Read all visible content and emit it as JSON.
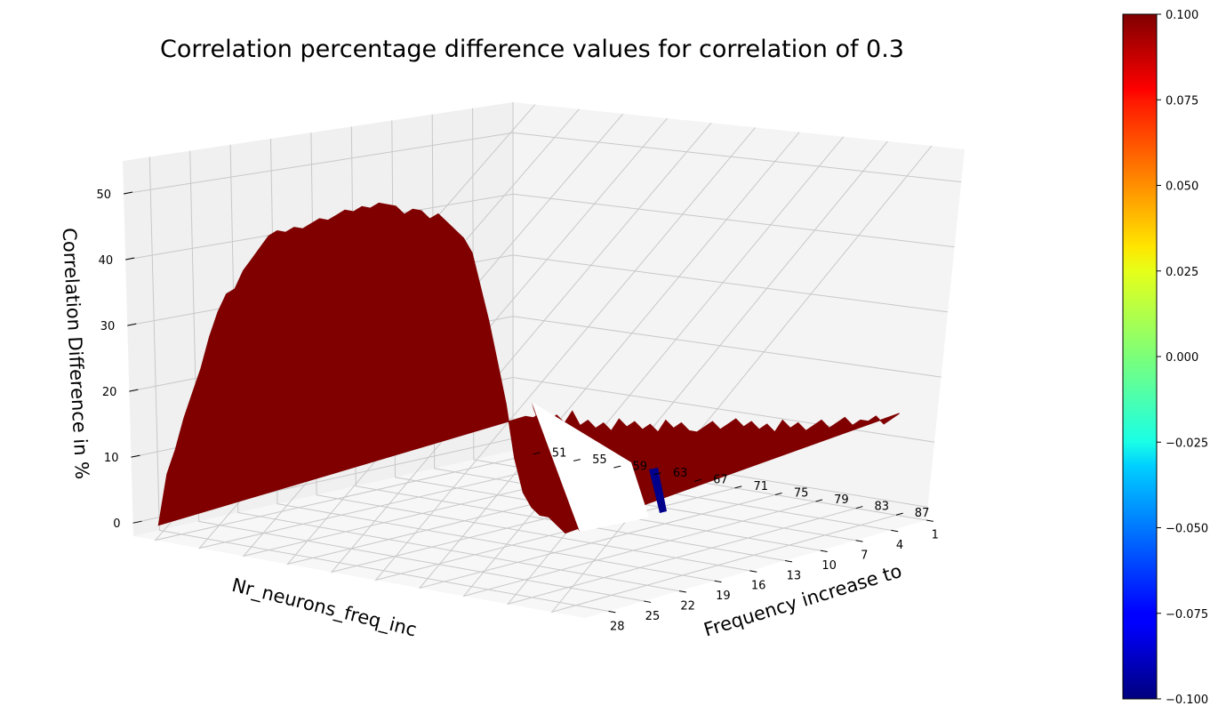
{
  "chart_data": {
    "type": "surface3d",
    "title": "Correlation percentage difference values for correlation of 0.3",
    "xlabel": "Frequency increase to",
    "ylabel": "Nr_neurons_freq_inc",
    "zlabel": "Correlation Difference in %",
    "x_ticks": [
      "51",
      "55",
      "59",
      "63",
      "67",
      "71",
      "75",
      "79",
      "83",
      "87"
    ],
    "y_ticks": [
      "28",
      "25",
      "22",
      "19",
      "16",
      "13",
      "10",
      "7",
      "4",
      "1"
    ],
    "z_ticks": [
      "0",
      "10",
      "20",
      "30",
      "40",
      "50"
    ],
    "xlim": [
      49,
      90
    ],
    "ylim": [
      1,
      30
    ],
    "zlim": [
      -2,
      55
    ],
    "grid": true,
    "surface_color": "#800000",
    "dip_color": "#00008b",
    "colorbar": {
      "colormap": "jet",
      "range": [
        -0.1,
        0.1
      ],
      "ticks": [
        "0.100",
        "0.075",
        "0.050",
        "0.025",
        "0.000",
        "−0.025",
        "−0.050",
        "−0.075",
        "−0.100"
      ]
    },
    "series": [
      {
        "nr_neurons": 28,
        "values": [
          0,
          8,
          12,
          17,
          21,
          25,
          30,
          34,
          37,
          38,
          41,
          43,
          45,
          47,
          48,
          48,
          49,
          49,
          50,
          51,
          51,
          52,
          53,
          53,
          54,
          54,
          55,
          55,
          55,
          54,
          55,
          55,
          54,
          55,
          54,
          53,
          52,
          50,
          45,
          40,
          34,
          28,
          20,
          15,
          13,
          12,
          12,
          11,
          10
        ]
      },
      {
        "nr_neurons": 1,
        "values": [
          4,
          4,
          5,
          4,
          5,
          4,
          6,
          4,
          5,
          4,
          5,
          4,
          6,
          5,
          6,
          5,
          6,
          5,
          7,
          6,
          7,
          6,
          6,
          7,
          8,
          7,
          8,
          9,
          8,
          9,
          8,
          9,
          8,
          10,
          9,
          10,
          9,
          10,
          11,
          10,
          11,
          12,
          11,
          12,
          12,
          13,
          12,
          13,
          14
        ]
      }
    ]
  }
}
